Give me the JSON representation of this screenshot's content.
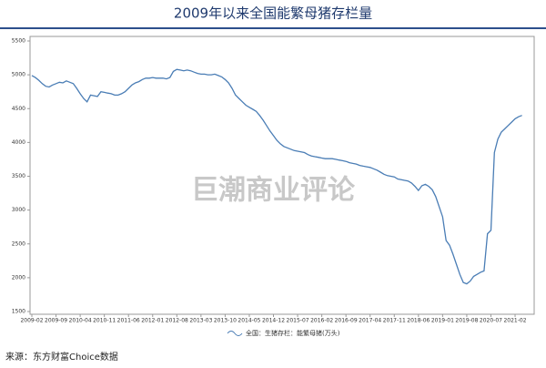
{
  "chart_data": {
    "type": "line",
    "title": "2009年以来全国能繁母猪存栏量",
    "watermark": "巨潮商业评论",
    "source": "来源：东方财富Choice数据",
    "categories": [
      "2009-02",
      null,
      null,
      null,
      null,
      null,
      null,
      "2009-09",
      null,
      null,
      null,
      null,
      null,
      null,
      "2010-04",
      null,
      null,
      null,
      null,
      null,
      null,
      "2010-11",
      null,
      null,
      null,
      null,
      null,
      null,
      "2011-06",
      null,
      null,
      null,
      null,
      null,
      null,
      "2012-01",
      null,
      null,
      null,
      null,
      null,
      null,
      "2012-08",
      null,
      null,
      null,
      null,
      null,
      null,
      "2013-03",
      null,
      null,
      null,
      null,
      null,
      null,
      "2013-10",
      null,
      null,
      null,
      null,
      null,
      null,
      "2014-05",
      null,
      null,
      null,
      null,
      null,
      null,
      "2014-12",
      null,
      null,
      null,
      null,
      null,
      null,
      "2015-07",
      null,
      null,
      null,
      null,
      null,
      null,
      "2016-02",
      null,
      null,
      null,
      null,
      null,
      null,
      "2016-09",
      null,
      null,
      null,
      null,
      null,
      null,
      "2017-04",
      null,
      null,
      null,
      null,
      null,
      null,
      "2017-11",
      null,
      null,
      null,
      null,
      null,
      null,
      "2018-06",
      null,
      null,
      null,
      null,
      null,
      null,
      "2019-01",
      null,
      null,
      null,
      null,
      null,
      null,
      "2019-08",
      null,
      null,
      null,
      null,
      null,
      null,
      "2020-07",
      null,
      null,
      null,
      null,
      null,
      null,
      "2021-02",
      null,
      null
    ],
    "series": [
      {
        "name": "全国：生猪存栏：能繁母猪(万头)",
        "color": "#4a7db5",
        "values": [
          4990,
          4960,
          4920,
          4870,
          4830,
          4820,
          4850,
          4870,
          4890,
          4880,
          4910,
          4890,
          4870,
          4800,
          4720,
          4650,
          4600,
          4700,
          4690,
          4680,
          4750,
          4740,
          4730,
          4720,
          4700,
          4700,
          4720,
          4750,
          4800,
          4850,
          4880,
          4900,
          4930,
          4950,
          4950,
          4960,
          4950,
          4950,
          4950,
          4940,
          4960,
          5050,
          5080,
          5070,
          5060,
          5070,
          5060,
          5040,
          5020,
          5010,
          5010,
          5000,
          5000,
          5010,
          4990,
          4970,
          4930,
          4880,
          4800,
          4700,
          4650,
          4600,
          4550,
          4520,
          4490,
          4460,
          4400,
          4330,
          4250,
          4170,
          4100,
          4030,
          3980,
          3940,
          3920,
          3900,
          3880,
          3870,
          3860,
          3850,
          3820,
          3800,
          3790,
          3780,
          3770,
          3760,
          3760,
          3760,
          3750,
          3740,
          3730,
          3720,
          3700,
          3690,
          3680,
          3660,
          3650,
          3640,
          3630,
          3610,
          3590,
          3560,
          3530,
          3510,
          3500,
          3490,
          3460,
          3450,
          3440,
          3430,
          3400,
          3350,
          3290,
          3360,
          3380,
          3350,
          3300,
          3200,
          3050,
          2900,
          2550,
          2480,
          2350,
          2200,
          2050,
          1930,
          1910,
          1950,
          2020,
          2050,
          2080,
          2100,
          2650,
          2700,
          3850,
          4050,
          4150,
          4200,
          4250,
          4300,
          4350,
          4380,
          4400
        ]
      }
    ],
    "ylim": [
      1500,
      5500
    ],
    "yticks": [
      1500,
      2000,
      2500,
      3000,
      3500,
      4000,
      4500,
      5000,
      5500
    ]
  }
}
